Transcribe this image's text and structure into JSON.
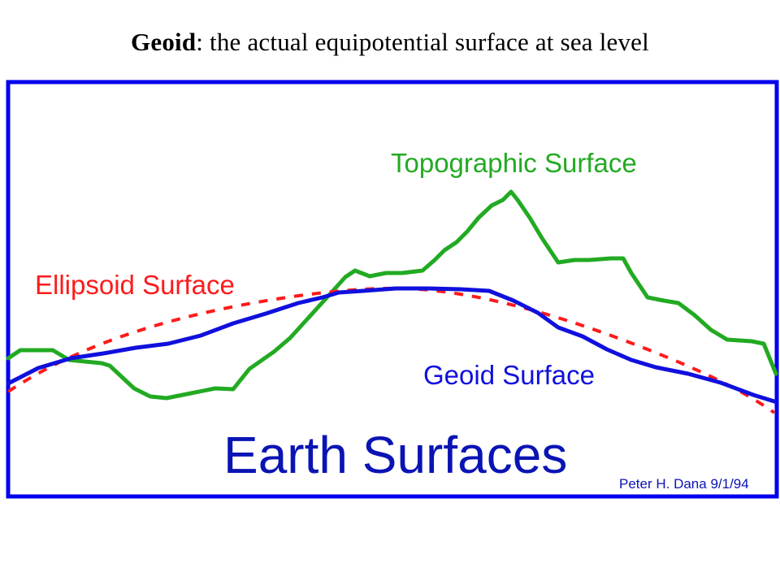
{
  "slide": {
    "title_term": "Geoid",
    "title_rest": ": the actual equipotential surface at sea level"
  },
  "figure": {
    "labels": {
      "topographic": "Topographic Surface",
      "ellipsoid": "Ellipsoid Surface",
      "geoid": "Geoid Surface",
      "heading": "Earth Surfaces",
      "credit": "Peter H. Dana 9/1/94"
    },
    "colors": {
      "frame": "#0000ee",
      "topographic": "#22aa22",
      "ellipsoid": "#ff1a1a",
      "geoid": "#1010dd",
      "heading": "#0a14b4",
      "credit": "#0a14b4"
    }
  }
}
